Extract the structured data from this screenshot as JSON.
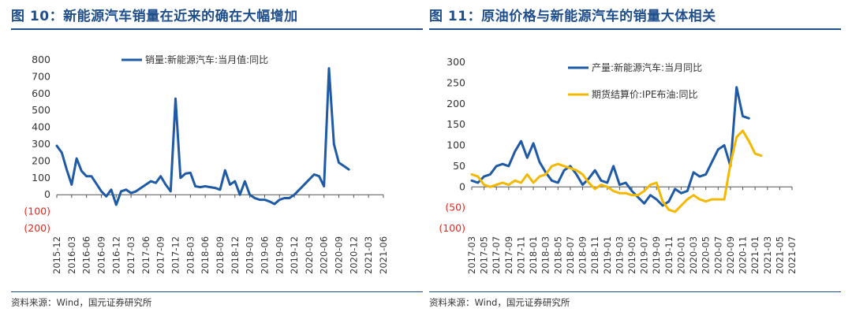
{
  "figures": [
    {
      "title": "图 10：新能源汽车销量在近来的确在大幅增加",
      "source": "资料来源：Wind，国元证券研究所"
    },
    {
      "title": "图 11：原油价格与新能源汽车的销量大体相关",
      "source": "资料来源：Wind，国元证券研究所"
    }
  ],
  "colors": {
    "title": "#1f4e8c",
    "series_blue": "#1f5aa6",
    "series_gold": "#f5b800",
    "negative_tick": "#e8261d"
  },
  "chart_data": [
    {
      "type": "line",
      "x_start": "2015-12",
      "x_end": "2021-06",
      "x_tick_labels": [
        "2015-12",
        "2016-03",
        "2016-06",
        "2016-09",
        "2016-12",
        "2017-03",
        "2017-06",
        "2017-09",
        "2017-12",
        "2018-03",
        "2018-06",
        "2018-09",
        "2018-12",
        "2019-03",
        "2019-06",
        "2019-09",
        "2019-12",
        "2020-03",
        "2020-06",
        "2020-09",
        "2020-12",
        "2021-03",
        "2021-06"
      ],
      "y_ticks": [
        -200,
        -100,
        0,
        100,
        200,
        300,
        400,
        500,
        600,
        700,
        800
      ],
      "y_tick_labels": [
        "(200)",
        "(100)",
        "0",
        "100",
        "200",
        "300",
        "400",
        "500",
        "600",
        "700",
        "800"
      ],
      "ylim": [
        -200,
        800
      ],
      "series": [
        {
          "name": "销量:新能源汽车:当月值:同比",
          "color": "#1f5aa6",
          "values": [
            290,
            250,
            150,
            60,
            215,
            140,
            110,
            110,
            65,
            20,
            -10,
            30,
            -60,
            20,
            30,
            10,
            20,
            40,
            60,
            80,
            70,
            110,
            60,
            20,
            570,
            100,
            125,
            130,
            50,
            45,
            50,
            45,
            40,
            30,
            145,
            60,
            80,
            0,
            80,
            0,
            -20,
            -30,
            -30,
            -40,
            -55,
            -30,
            -20,
            -20,
            0,
            30,
            60,
            90,
            120,
            110,
            50,
            750,
            300,
            190,
            170,
            150
          ]
        }
      ]
    },
    {
      "type": "line",
      "x_start": "2017-03",
      "x_end": "2021-07",
      "x_tick_labels": [
        "2017-03",
        "2017-05",
        "2017-07",
        "2017-09",
        "2017-11",
        "2018-01",
        "2018-03",
        "2018-05",
        "2018-07",
        "2018-09",
        "2018-11",
        "2019-01",
        "2019-03",
        "2019-05",
        "2019-07",
        "2019-09",
        "2019-11",
        "2020-01",
        "2020-03",
        "2020-05",
        "2020-07",
        "2020-09",
        "2020-11",
        "2021-01",
        "2021-03",
        "2021-05",
        "2021-07"
      ],
      "y_ticks": [
        -100,
        -50,
        0,
        50,
        100,
        150,
        200,
        250,
        300
      ],
      "y_tick_labels": [
        "(100)",
        "(50)",
        "0",
        "50",
        "100",
        "150",
        "200",
        "250",
        "300"
      ],
      "ylim": [
        -100,
        300
      ],
      "series": [
        {
          "name": "产量:新能源汽车:当月同比",
          "color": "#1f5aa6",
          "values": [
            15,
            10,
            25,
            30,
            50,
            55,
            50,
            85,
            110,
            70,
            105,
            60,
            35,
            15,
            10,
            40,
            50,
            30,
            5,
            20,
            40,
            15,
            10,
            50,
            5,
            10,
            -10,
            -25,
            -40,
            -20,
            -30,
            -45,
            -35,
            -5,
            -15,
            -10,
            35,
            25,
            30,
            60,
            90,
            100,
            50,
            240,
            170,
            165
          ]
        },
        {
          "name": "期货结算价:IPE布油:同比",
          "color": "#f5b800",
          "values": [
            30,
            25,
            5,
            0,
            5,
            10,
            5,
            15,
            10,
            30,
            10,
            25,
            30,
            50,
            55,
            50,
            45,
            40,
            30,
            10,
            -5,
            5,
            0,
            -10,
            -15,
            -15,
            -20,
            -20,
            -10,
            5,
            10,
            -35,
            -55,
            -60,
            -45,
            -30,
            -20,
            -30,
            -35,
            -30,
            -30,
            -30,
            55,
            120,
            135,
            110,
            80,
            75
          ]
        }
      ]
    }
  ]
}
